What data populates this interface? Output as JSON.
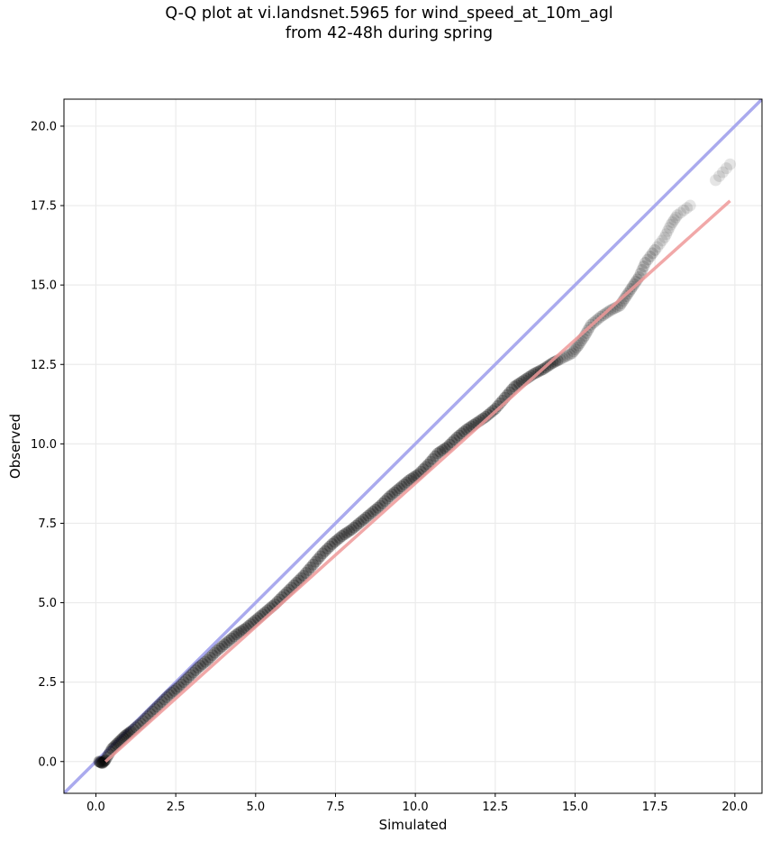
{
  "chart_data": {
    "type": "scatter",
    "title_lines": [
      "Q-Q plot at vi.landsnet.5965 for wind_speed_at_10m_agl",
      "from 42-48h during spring"
    ],
    "xlabel": "Simulated",
    "ylabel": "Observed",
    "xlim": [
      -1.0,
      20.85
    ],
    "ylim": [
      -1.0,
      20.85
    ],
    "x_ticks": [
      0.0,
      2.5,
      5.0,
      7.5,
      10.0,
      12.5,
      15.0,
      17.5,
      20.0
    ],
    "y_ticks": [
      0.0,
      2.5,
      5.0,
      7.5,
      10.0,
      12.5,
      15.0,
      17.5,
      20.0
    ],
    "x_tick_labels": [
      "0.0",
      "2.5",
      "5.0",
      "7.5",
      "10.0",
      "12.5",
      "15.0",
      "17.5",
      "20.0"
    ],
    "y_tick_labels": [
      "0.0",
      "2.5",
      "5.0",
      "7.5",
      "10.0",
      "12.5",
      "15.0",
      "17.5",
      "20.0"
    ],
    "grid": true,
    "reference_line": {
      "description": "1:1 line",
      "color": "#aaaaee",
      "x": [
        -1.0,
        20.85
      ],
      "y": [
        -1.0,
        20.85
      ]
    },
    "fit_line": {
      "color": "#ee9999",
      "x": [
        0.3,
        19.85
      ],
      "y": [
        0.0,
        17.65
      ]
    },
    "points_color": "#000000",
    "points": [
      [
        0.1,
        0.0
      ],
      [
        0.2,
        -0.05
      ],
      [
        0.3,
        0.05
      ],
      [
        0.5,
        0.4
      ],
      [
        0.7,
        0.6
      ],
      [
        0.9,
        0.8
      ],
      [
        1.1,
        0.95
      ],
      [
        1.4,
        1.2
      ],
      [
        1.7,
        1.5
      ],
      [
        2.0,
        1.8
      ],
      [
        2.3,
        2.1
      ],
      [
        2.6,
        2.35
      ],
      [
        2.9,
        2.65
      ],
      [
        3.2,
        2.95
      ],
      [
        3.5,
        3.2
      ],
      [
        3.8,
        3.5
      ],
      [
        4.1,
        3.75
      ],
      [
        4.4,
        4.0
      ],
      [
        4.7,
        4.2
      ],
      [
        5.0,
        4.45
      ],
      [
        5.3,
        4.7
      ],
      [
        5.6,
        4.95
      ],
      [
        5.9,
        5.25
      ],
      [
        6.2,
        5.55
      ],
      [
        6.5,
        5.85
      ],
      [
        6.8,
        6.2
      ],
      [
        7.1,
        6.55
      ],
      [
        7.4,
        6.85
      ],
      [
        7.7,
        7.1
      ],
      [
        8.0,
        7.3
      ],
      [
        8.3,
        7.55
      ],
      [
        8.6,
        7.8
      ],
      [
        8.9,
        8.05
      ],
      [
        9.2,
        8.35
      ],
      [
        9.5,
        8.6
      ],
      [
        9.8,
        8.85
      ],
      [
        10.1,
        9.05
      ],
      [
        10.4,
        9.35
      ],
      [
        10.7,
        9.7
      ],
      [
        11.0,
        9.9
      ],
      [
        11.3,
        10.2
      ],
      [
        11.6,
        10.45
      ],
      [
        11.9,
        10.65
      ],
      [
        12.2,
        10.85
      ],
      [
        12.5,
        11.1
      ],
      [
        12.8,
        11.45
      ],
      [
        13.1,
        11.8
      ],
      [
        13.4,
        12.0
      ],
      [
        13.7,
        12.2
      ],
      [
        14.0,
        12.35
      ],
      [
        14.3,
        12.55
      ],
      [
        14.6,
        12.7
      ],
      [
        14.9,
        12.85
      ],
      [
        15.1,
        13.1
      ],
      [
        15.3,
        13.4
      ],
      [
        15.5,
        13.75
      ],
      [
        15.8,
        14.0
      ],
      [
        16.1,
        14.2
      ],
      [
        16.4,
        14.35
      ],
      [
        16.6,
        14.65
      ],
      [
        16.8,
        14.95
      ],
      [
        17.0,
        15.25
      ],
      [
        17.2,
        15.7
      ],
      [
        17.5,
        16.1
      ],
      [
        17.8,
        16.5
      ],
      [
        18.0,
        16.9
      ],
      [
        18.2,
        17.2
      ],
      [
        18.6,
        17.5
      ],
      [
        19.4,
        18.3
      ],
      [
        19.85,
        18.8
      ]
    ]
  }
}
